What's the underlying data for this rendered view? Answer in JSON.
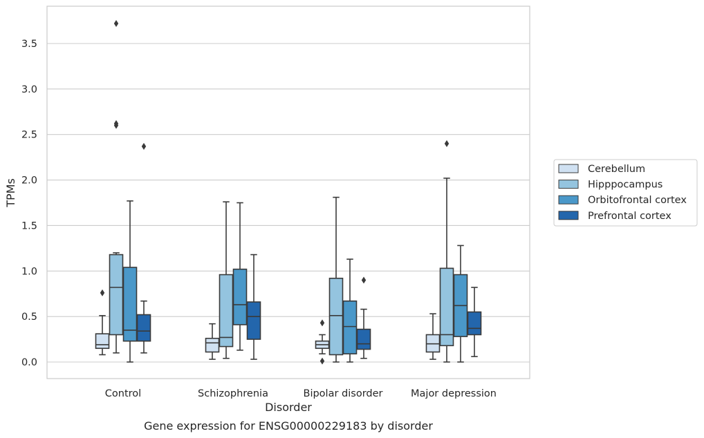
{
  "chart_data": {
    "type": "box",
    "title": "Gene expression for ENSG00000229183 by disorder",
    "xlabel": "Disorder",
    "ylabel": "TPMs",
    "categories": [
      "Control",
      "Schizophrenia",
      "Bipolar disorder",
      "Major depression"
    ],
    "ylim": [
      -0.18,
      3.92
    ],
    "yticks": [
      "0.0",
      "0.5",
      "1.0",
      "1.5",
      "2.0",
      "2.5",
      "3.0",
      "3.5"
    ],
    "grid": true,
    "legend_position": "right",
    "series": [
      {
        "name": "Cerebellum",
        "color": "#d0e1f2",
        "boxes": [
          {
            "whislo": 0.08,
            "q1": 0.15,
            "med": 0.19,
            "q3": 0.31,
            "whishi": 0.51,
            "fliers": [
              0.76
            ]
          },
          {
            "whislo": 0.03,
            "q1": 0.11,
            "med": 0.21,
            "q3": 0.26,
            "whishi": 0.42,
            "fliers": []
          },
          {
            "whislo": 0.09,
            "q1": 0.15,
            "med": 0.19,
            "q3": 0.23,
            "whishi": 0.3,
            "fliers": [
              0.43,
              0.01
            ]
          },
          {
            "whislo": 0.03,
            "q1": 0.11,
            "med": 0.2,
            "q3": 0.3,
            "whishi": 0.53,
            "fliers": []
          }
        ]
      },
      {
        "name": "Hipppocampus",
        "color": "#94c4df",
        "boxes": [
          {
            "whislo": 0.1,
            "q1": 0.3,
            "med": 0.82,
            "q3": 1.18,
            "whishi": 1.2,
            "fliers": [
              3.72,
              2.6,
              2.62
            ]
          },
          {
            "whislo": 0.04,
            "q1": 0.17,
            "med": 0.27,
            "q3": 0.96,
            "whishi": 1.76,
            "fliers": []
          },
          {
            "whislo": 0.0,
            "q1": 0.08,
            "med": 0.51,
            "q3": 0.92,
            "whishi": 1.81,
            "fliers": []
          },
          {
            "whislo": 0.0,
            "q1": 0.18,
            "med": 0.3,
            "q3": 1.03,
            "whishi": 2.02,
            "fliers": [
              2.4
            ]
          }
        ]
      },
      {
        "name": "Orbitofrontal cortex",
        "color": "#4a98c9",
        "boxes": [
          {
            "whislo": 0.0,
            "q1": 0.23,
            "med": 0.35,
            "q3": 1.04,
            "whishi": 1.77,
            "fliers": []
          },
          {
            "whislo": 0.13,
            "q1": 0.41,
            "med": 0.63,
            "q3": 1.02,
            "whishi": 1.75,
            "fliers": []
          },
          {
            "whislo": 0.0,
            "q1": 0.09,
            "med": 0.39,
            "q3": 0.67,
            "whishi": 1.13,
            "fliers": []
          },
          {
            "whislo": 0.0,
            "q1": 0.28,
            "med": 0.62,
            "q3": 0.96,
            "whishi": 1.28,
            "fliers": []
          }
        ]
      },
      {
        "name": "Prefrontal cortex",
        "color": "#2366ac",
        "boxes": [
          {
            "whislo": 0.1,
            "q1": 0.23,
            "med": 0.34,
            "q3": 0.52,
            "whishi": 0.67,
            "fliers": [
              2.37
            ]
          },
          {
            "whislo": 0.03,
            "q1": 0.25,
            "med": 0.5,
            "q3": 0.66,
            "whishi": 1.18,
            "fliers": []
          },
          {
            "whislo": 0.04,
            "q1": 0.14,
            "med": 0.2,
            "q3": 0.36,
            "whishi": 0.58,
            "fliers": [
              0.9
            ]
          },
          {
            "whislo": 0.06,
            "q1": 0.3,
            "med": 0.37,
            "q3": 0.55,
            "whishi": 0.82,
            "fliers": []
          }
        ]
      }
    ]
  }
}
